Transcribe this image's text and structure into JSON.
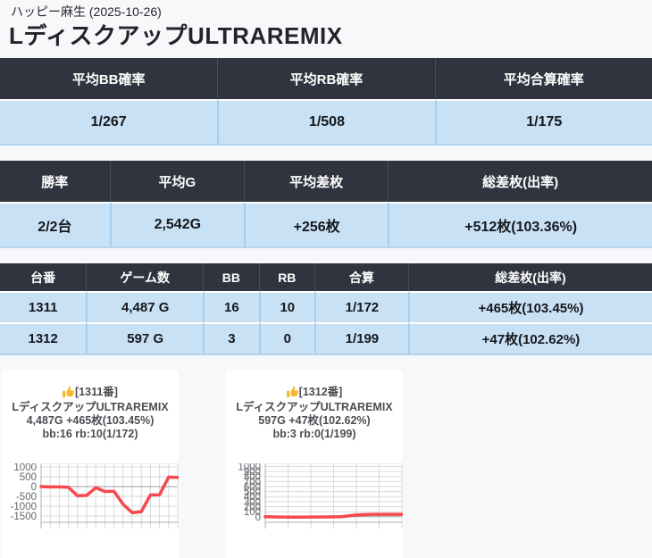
{
  "header": {
    "hall_line": "ハッピー麻生 (2025-10-26)",
    "title": "LディスクアップULTRAREMIX"
  },
  "colors": {
    "table_header_bg": "#2f343e",
    "table_row_bg": "#c9e1f5",
    "accent_blue": "#2e86d9",
    "line_red": "#f4494f",
    "page_bg": "#f7f8fa"
  },
  "avg_table": {
    "headers": [
      "平均BB確率",
      "平均RB確率",
      "平均合算確率"
    ],
    "values": [
      "1/267",
      "1/508",
      "1/175"
    ]
  },
  "win_table": {
    "headers": [
      "勝率",
      "平均G",
      "平均差枚",
      "総差枚(出率)"
    ],
    "values": [
      "2/2台",
      "2,542G",
      "+256枚",
      "+512枚(103.36%)"
    ]
  },
  "machine_table": {
    "headers": [
      "台番",
      "ゲーム数",
      "BB",
      "RB",
      "合算",
      "総差枚(出率)"
    ],
    "rows": [
      [
        "1311",
        "4,487 G",
        "16",
        "10",
        "1/172",
        "+465枚(103.45%)"
      ],
      [
        "1312",
        "597 G",
        "3",
        "0",
        "1/199",
        "+47枚(102.62%)"
      ]
    ]
  },
  "chart_data": [
    {
      "type": "line",
      "machine_no": "1311",
      "icon": "thumbs-up-icon",
      "title_lines": [
        "[1311番]",
        "LディスクアップULTRAREMIX",
        "4,487G +465枚(103.45%)",
        "bb:16 rb:10(1/172)"
      ],
      "values": [
        0,
        -20,
        -20,
        -40,
        -470,
        -450,
        -60,
        -250,
        -240,
        -900,
        -1330,
        -1280,
        -430,
        -420,
        480,
        465
      ],
      "final_diff": 465,
      "yticks": [
        1000,
        500,
        0,
        -500,
        -1000,
        -1500
      ],
      "ylim": [
        -1820,
        1180
      ],
      "x_intervals": 15,
      "line_color": "#f4494f",
      "grid": true,
      "legend": false
    },
    {
      "type": "line",
      "machine_no": "1312",
      "icon": "thumbs-up-icon",
      "title_lines": [
        "[1312番]",
        "LディスクアップULTRAREMIX",
        "597G +47枚(102.62%)",
        "bb:3 rb:0(1/199)"
      ],
      "values": [
        0,
        -5,
        -8,
        -5,
        -3,
        0,
        35,
        47,
        47,
        47
      ],
      "final_diff": 47,
      "yticks": [
        1000,
        900,
        800,
        700,
        600,
        500,
        400,
        300,
        200,
        100,
        0
      ],
      "ylim": [
        -110,
        1060
      ],
      "x_intervals": 6,
      "line_color": "#f4494f",
      "grid": true,
      "legend": false
    }
  ]
}
